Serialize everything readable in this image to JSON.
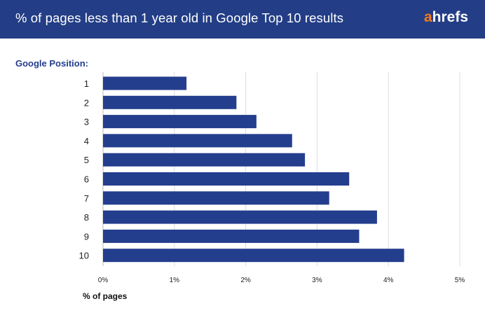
{
  "header": {
    "title": "% of pages less than 1 year old in Google Top 10 results",
    "logo_accent": "a",
    "logo_rest": "hrefs"
  },
  "colors": {
    "header_bg": "#233e86",
    "bar": "#243e8e",
    "logo_accent": "#f47b20",
    "grid": "#dcdcdc"
  },
  "chart_data": {
    "type": "bar",
    "orientation": "horizontal",
    "title": "% of pages less than 1 year old in Google Top 10 results",
    "ylabel": "Google Position:",
    "xlabel": "% of pages",
    "categories": [
      "1",
      "2",
      "3",
      "4",
      "5",
      "6",
      "7",
      "8",
      "9",
      "10"
    ],
    "values": [
      1.17,
      1.87,
      2.15,
      2.65,
      2.83,
      3.45,
      3.17,
      3.84,
      3.59,
      4.22
    ],
    "xlim": [
      0,
      5
    ],
    "xticks": [
      "0%",
      "1%",
      "2%",
      "3%",
      "4%",
      "5%"
    ],
    "grid": true,
    "legend": "none"
  }
}
